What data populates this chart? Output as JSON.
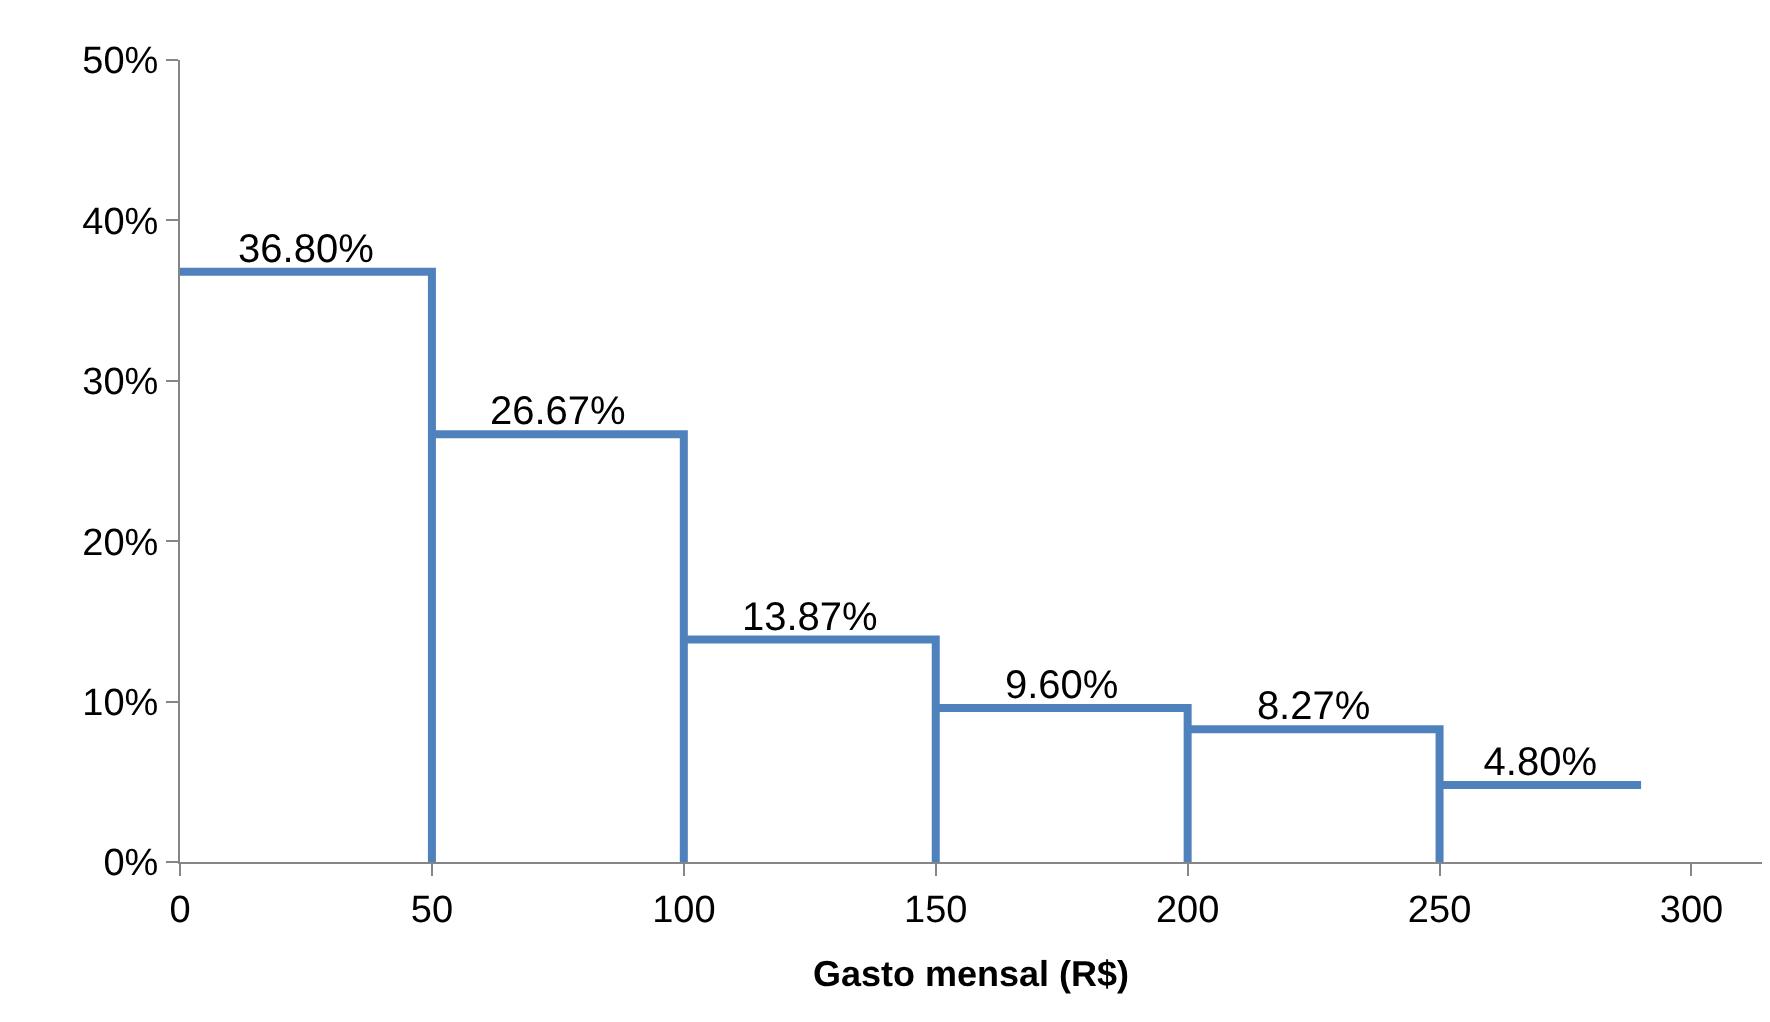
{
  "chart_data": {
    "type": "line",
    "xlabel": "Gasto mensal (R$)",
    "x": [
      0,
      25,
      50,
      50,
      50,
      75,
      100,
      100,
      100,
      125,
      150,
      150,
      150,
      175,
      200,
      200,
      200,
      225,
      250,
      250,
      250,
      270,
      290
    ],
    "series": [
      {
        "color": "#4f81bd",
        "values": [
          36.8,
          36.8,
          36.8,
          0,
          26.67,
          26.67,
          26.67,
          0,
          13.87,
          13.87,
          13.87,
          0,
          9.6,
          9.6,
          9.6,
          0,
          8.27,
          8.27,
          8.27,
          0,
          4.8,
          4.8,
          4.8
        ],
        "value_labels": [
          null,
          "36.80%",
          null,
          null,
          null,
          "26.67%",
          null,
          null,
          null,
          "13.87%",
          null,
          null,
          null,
          "9.60%",
          null,
          null,
          null,
          "8.27%",
          null,
          null,
          null,
          "4.80%",
          null
        ]
      }
    ],
    "xlim": [
      0,
      314
    ],
    "xticks": [
      0,
      50,
      100,
      150,
      200,
      250,
      300
    ],
    "ylim": [
      0,
      50
    ],
    "yticks": [
      {
        "value": 0,
        "label": "0%"
      },
      {
        "value": 10,
        "label": "10%"
      },
      {
        "value": 20,
        "label": "20%"
      },
      {
        "value": 30,
        "label": "30%"
      },
      {
        "value": 40,
        "label": "40%"
      },
      {
        "value": 50,
        "label": "50%"
      }
    ],
    "marker": "none",
    "line_style": "solid"
  }
}
